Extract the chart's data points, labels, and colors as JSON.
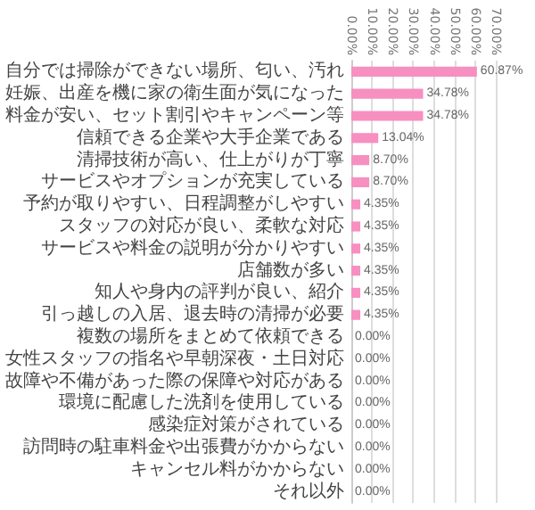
{
  "chart_data": {
    "type": "bar",
    "orientation": "horizontal",
    "color": "#f78fc0",
    "grid": "x",
    "categories": [
      "自分では掃除ができない場所、匂い、汚れ",
      "妊娠、出産を機に家の衛生面が気になった",
      "料金が安い、セット割引やキャンペーン等",
      "信頼できる企業や大手企業である",
      "清掃技術が高い、仕上がりが丁寧",
      "サービスやオプションが充実している",
      "予約が取りやすい、日程調整がしやすい",
      "スタッフの対応が良い、柔軟な対応",
      "サービスや料金の説明が分かりやすい",
      "店舗数が多い",
      "知人や身内の評判が良い、紹介",
      "引っ越しの入居、退去時の清掃が必要",
      "複数の場所をまとめて依頼できる",
      "女性スタッフの指名や早朝深夜・土日対応",
      "故障や不備があった際の保障や対応がある",
      "環境に配慮した洗剤を使用している",
      "感染症対策がされている",
      "訪問時の駐車料金や出張費がかからない",
      "キャンセル料がかからない",
      "それ以外"
    ],
    "values": [
      60.87,
      34.78,
      34.78,
      13.04,
      8.7,
      8.7,
      4.35,
      4.35,
      4.35,
      4.35,
      4.35,
      4.35,
      0,
      0,
      0,
      0,
      0,
      0,
      0,
      0
    ],
    "value_labels": [
      "60.87%",
      "34.78%",
      "34.78%",
      "13.04%",
      "8.70%",
      "8.70%",
      "4.35%",
      "4.35%",
      "4.35%",
      "4.35%",
      "4.35%",
      "4.35%",
      "0.00%",
      "0.00%",
      "0.00%",
      "0.00%",
      "0.00%",
      "0.00%",
      "0.00%",
      "0.00%"
    ],
    "xlim": [
      0,
      70
    ],
    "xticks": [
      {
        "value": 0,
        "label": "0.00%"
      },
      {
        "value": 10,
        "label": "10.00%"
      },
      {
        "value": 20,
        "label": "20.00%"
      },
      {
        "value": 30,
        "label": "30.00%"
      },
      {
        "value": 40,
        "label": "40.00%"
      },
      {
        "value": 50,
        "label": "50.00%"
      },
      {
        "value": 60,
        "label": "60.00%"
      },
      {
        "value": 70,
        "label": "70.00%"
      }
    ]
  }
}
